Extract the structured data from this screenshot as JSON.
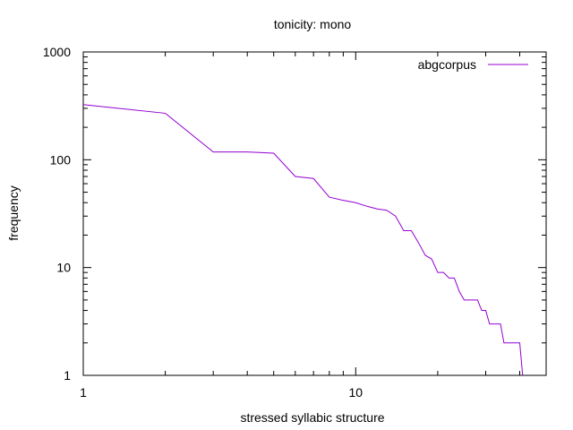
{
  "chart_data": {
    "type": "line",
    "title": "tonicity: mono",
    "xlabel": "stressed syllabic structure",
    "ylabel": "frequency",
    "x_scale": "log",
    "y_scale": "log",
    "xlim": [
      1,
      50
    ],
    "ylim": [
      1,
      1000
    ],
    "x_ticks": [
      {
        "value": 1,
        "label": "1"
      },
      {
        "value": 10,
        "label": "10"
      }
    ],
    "y_ticks": [
      {
        "value": 1,
        "label": "1"
      },
      {
        "value": 10,
        "label": "10"
      },
      {
        "value": 100,
        "label": "100"
      },
      {
        "value": 1000,
        "label": "1000"
      }
    ],
    "grid": false,
    "legend": {
      "position": "top-right"
    },
    "series": [
      {
        "name": "abgcorpus",
        "color": "#9400d3",
        "points": [
          [
            1,
            325
          ],
          [
            2,
            270
          ],
          [
            3,
            118
          ],
          [
            4,
            118
          ],
          [
            5,
            115
          ],
          [
            6,
            70
          ],
          [
            7,
            67
          ],
          [
            8,
            45
          ],
          [
            9,
            42
          ],
          [
            10,
            40
          ],
          [
            11,
            37
          ],
          [
            12,
            35
          ],
          [
            13,
            34
          ],
          [
            14,
            30
          ],
          [
            15,
            22
          ],
          [
            16,
            22
          ],
          [
            17,
            17
          ],
          [
            18,
            13
          ],
          [
            19,
            12
          ],
          [
            20,
            9
          ],
          [
            21,
            9
          ],
          [
            22,
            8
          ],
          [
            23,
            8
          ],
          [
            24,
            6
          ],
          [
            25,
            5
          ],
          [
            26,
            5
          ],
          [
            27,
            5
          ],
          [
            28,
            5
          ],
          [
            29,
            4
          ],
          [
            30,
            4
          ],
          [
            31,
            3
          ],
          [
            32,
            3
          ],
          [
            33,
            3
          ],
          [
            34,
            3
          ],
          [
            35,
            2
          ],
          [
            36,
            2
          ],
          [
            37,
            2
          ],
          [
            38,
            2
          ],
          [
            39,
            2
          ],
          [
            40,
            2
          ],
          [
            41,
            1
          ]
        ]
      }
    ]
  }
}
